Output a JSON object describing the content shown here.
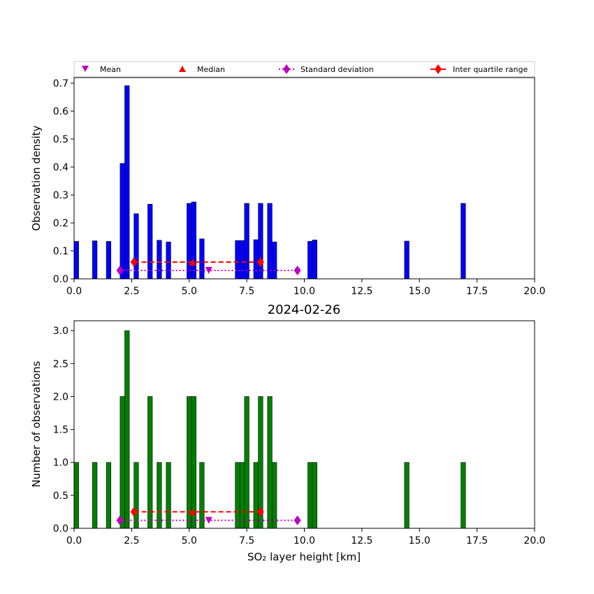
{
  "chart_data": [
    {
      "type": "bar",
      "title": "",
      "xlabel": "",
      "ylabel": "Observation density",
      "xlim": [
        0,
        20
      ],
      "ylim": [
        0,
        0.72
      ],
      "xticks": [
        "0.0",
        "2.5",
        "5.0",
        "7.5",
        "10.0",
        "12.5",
        "15.0",
        "17.5",
        "20.0"
      ],
      "yticks": [
        "0.0",
        "0.1",
        "0.2",
        "0.3",
        "0.4",
        "0.5",
        "0.6",
        "0.7"
      ],
      "bar_color": "#0000ff",
      "bar_width": 0.2,
      "bars": [
        {
          "x": 0.1,
          "y": 0.134
        },
        {
          "x": 0.9,
          "y": 0.136
        },
        {
          "x": 1.5,
          "y": 0.134
        },
        {
          "x": 2.1,
          "y": 0.413
        },
        {
          "x": 2.3,
          "y": 0.691
        },
        {
          "x": 2.7,
          "y": 0.233
        },
        {
          "x": 3.3,
          "y": 0.267
        },
        {
          "x": 3.7,
          "y": 0.138
        },
        {
          "x": 4.1,
          "y": 0.132
        },
        {
          "x": 5.0,
          "y": 0.27
        },
        {
          "x": 5.2,
          "y": 0.275
        },
        {
          "x": 5.55,
          "y": 0.143
        },
        {
          "x": 7.1,
          "y": 0.137
        },
        {
          "x": 7.3,
          "y": 0.137
        },
        {
          "x": 7.5,
          "y": 0.27
        },
        {
          "x": 7.9,
          "y": 0.14
        },
        {
          "x": 8.1,
          "y": 0.27
        },
        {
          "x": 8.5,
          "y": 0.27
        },
        {
          "x": 8.7,
          "y": 0.132
        },
        {
          "x": 10.25,
          "y": 0.134
        },
        {
          "x": 10.45,
          "y": 0.139
        },
        {
          "x": 14.45,
          "y": 0.135
        },
        {
          "x": 16.9,
          "y": 0.27
        }
      ],
      "stats_markers": {
        "mean": 5.85,
        "median": 5.15,
        "std_range": [
          1.99,
          9.7
        ],
        "iqr": [
          2.6,
          8.1
        ],
        "mean_y": 0.03,
        "iqr_y": 0.06
      }
    },
    {
      "type": "bar",
      "title": "2024-02-26",
      "xlabel": "SO₂ layer height [km]",
      "ylabel": "Number of observations",
      "xlim": [
        0,
        20
      ],
      "ylim": [
        0,
        3.15
      ],
      "xticks": [
        "0.0",
        "2.5",
        "5.0",
        "7.5",
        "10.0",
        "12.5",
        "15.0",
        "17.5",
        "20.0"
      ],
      "yticks": [
        "0.0",
        "0.5",
        "1.0",
        "1.5",
        "2.0",
        "2.5",
        "3.0"
      ],
      "bar_color": "#008000",
      "bar_width": 0.2,
      "bars": [
        {
          "x": 0.1,
          "y": 1
        },
        {
          "x": 0.9,
          "y": 1
        },
        {
          "x": 1.5,
          "y": 1
        },
        {
          "x": 2.1,
          "y": 2
        },
        {
          "x": 2.3,
          "y": 3
        },
        {
          "x": 2.7,
          "y": 1
        },
        {
          "x": 3.3,
          "y": 2
        },
        {
          "x": 3.7,
          "y": 1
        },
        {
          "x": 4.1,
          "y": 1
        },
        {
          "x": 5.0,
          "y": 2
        },
        {
          "x": 5.2,
          "y": 2
        },
        {
          "x": 5.55,
          "y": 1
        },
        {
          "x": 7.1,
          "y": 1
        },
        {
          "x": 7.3,
          "y": 1
        },
        {
          "x": 7.5,
          "y": 2
        },
        {
          "x": 7.9,
          "y": 1
        },
        {
          "x": 8.1,
          "y": 2
        },
        {
          "x": 8.5,
          "y": 2
        },
        {
          "x": 8.7,
          "y": 1
        },
        {
          "x": 10.25,
          "y": 1
        },
        {
          "x": 10.45,
          "y": 1
        },
        {
          "x": 14.45,
          "y": 1
        },
        {
          "x": 16.9,
          "y": 1
        }
      ],
      "stats_markers": {
        "mean": 5.85,
        "median": 5.15,
        "std_range": [
          1.99,
          9.7
        ],
        "iqr": [
          2.6,
          8.1
        ],
        "mean_y": 0.12,
        "iqr_y": 0.25
      }
    }
  ],
  "legend": {
    "placement": "top, above upper chart",
    "entries": [
      {
        "label": "Mean",
        "marker": "triangle-down",
        "color": "#bf00bf"
      },
      {
        "label": "Median",
        "marker": "triangle-up",
        "color": "#ff0000"
      },
      {
        "label": "Standard deviation",
        "marker": "diamond",
        "line": "dotted",
        "color": "#bf00bf"
      },
      {
        "label": "Inter quartile range",
        "marker": "diamond",
        "line": "dashed",
        "color": "#ff0000"
      }
    ]
  }
}
